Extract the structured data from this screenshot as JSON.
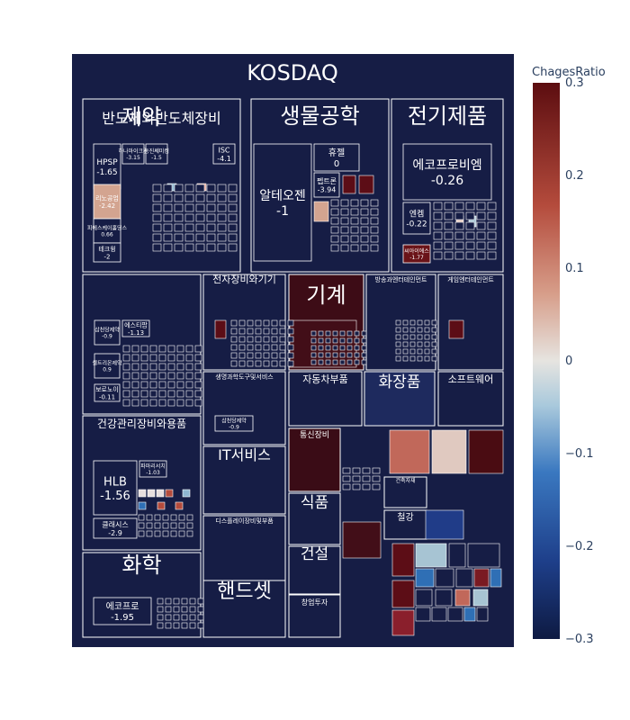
{
  "chart_data": {
    "type": "treemap",
    "title": "KOSDAQ",
    "colorbar": {
      "title": "ChagesRatio",
      "range": [
        -0.3,
        0.3
      ],
      "ticks": [
        "0.3",
        "0.2",
        "0.1",
        "0",
        "−0.1",
        "−0.2",
        "−0.3"
      ],
      "colorscale": [
        "#0e1a42",
        "#1e3f8a",
        "#3a78c0",
        "#a9c9dc",
        "#e6e4e0",
        "#d79e8a",
        "#b44b3c",
        "#5c0d10"
      ]
    },
    "sectors": [
      {
        "name": "반도체와반도체장비",
        "stocks": [
          {
            "name": "HPSP",
            "value": "-1.65"
          },
          {
            "name": "하나마이크론",
            "value": "-3.15"
          },
          {
            "name": "동진쎄미켐",
            "value": "-1.5"
          },
          {
            "name": "리노공업",
            "value": "-2.42"
          },
          {
            "name": "피에스케이홀딩스",
            "value": "0.66"
          },
          {
            "name": "테크윙",
            "value": "-2"
          },
          {
            "name": "ISC",
            "value": "-4.1"
          }
        ]
      },
      {
        "name": "생물공학",
        "stocks": [
          {
            "name": "알테오젠",
            "value": "-1"
          },
          {
            "name": "휴젤",
            "value": "0"
          },
          {
            "name": "펩트론",
            "value": "-3.94"
          }
        ]
      },
      {
        "name": "전기제품",
        "stocks": [
          {
            "name": "에코프로비엠",
            "value": "-0.26"
          },
          {
            "name": "엔켐",
            "value": "-0.22"
          },
          {
            "name": "씨아이에스",
            "value": "-1.77"
          }
        ]
      },
      {
        "name": "제약",
        "stocks": [
          {
            "name": "삼천당제약",
            "value": "-0.9"
          },
          {
            "name": "에스티팜",
            "value": "-1.13"
          },
          {
            "name": "셀트리온제약",
            "value": "0.9"
          },
          {
            "name": "보로노이",
            "value": "-0.11"
          }
        ]
      },
      {
        "name": "전자장비와기기",
        "stocks": []
      },
      {
        "name": "기계",
        "stocks": []
      },
      {
        "name": "방송과엔터테인먼트",
        "stocks": []
      },
      {
        "name": "게임엔터테인먼트",
        "stocks": []
      },
      {
        "name": "건강관리장비와용품",
        "stocks": [
          {
            "name": "HLB",
            "value": "-1.56"
          },
          {
            "name": "파마리서치",
            "value": "-1.03"
          },
          {
            "name": "클래시스",
            "value": "-2.9"
          }
        ]
      },
      {
        "name": "생명과학도구및서비스",
        "stocks": [
          {
            "name": "삼천당제약",
            "value": "-0.9"
          }
        ]
      },
      {
        "name": "자동차부품",
        "stocks": []
      },
      {
        "name": "화장품",
        "stocks": []
      },
      {
        "name": "소프트웨어",
        "stocks": []
      },
      {
        "name": "IT서비스",
        "stocks": []
      },
      {
        "name": "통신장비",
        "stocks": []
      },
      {
        "name": "디스플레이장비및부품",
        "stocks": []
      },
      {
        "name": "식품",
        "stocks": []
      },
      {
        "name": "화학",
        "stocks": [
          {
            "name": "에코프로",
            "value": "-1.95"
          }
        ]
      },
      {
        "name": "건설",
        "stocks": []
      },
      {
        "name": "핸드셋",
        "stocks": []
      },
      {
        "name": "창업투자",
        "stocks": []
      },
      {
        "name": "건축자재",
        "stocks": []
      },
      {
        "name": "철강",
        "stocks": []
      }
    ]
  }
}
